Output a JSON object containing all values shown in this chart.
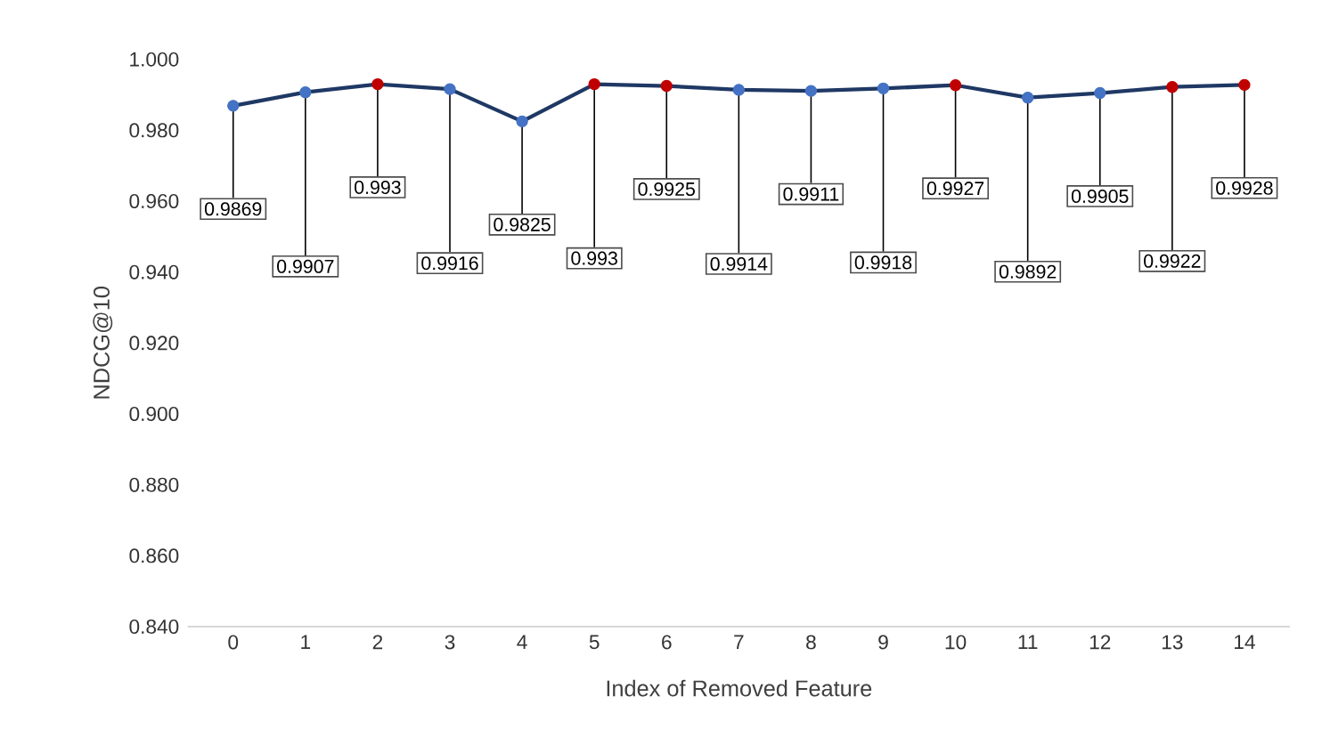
{
  "chart_data": {
    "type": "line",
    "xlabel": "Index of Removed Feature",
    "ylabel": "NDCG@10",
    "categories": [
      "0",
      "1",
      "2",
      "3",
      "4",
      "5",
      "6",
      "7",
      "8",
      "9",
      "10",
      "11",
      "12",
      "13",
      "14"
    ],
    "values": [
      0.9869,
      0.9907,
      0.993,
      0.9916,
      0.9825,
      0.993,
      0.9925,
      0.9914,
      0.9911,
      0.9918,
      0.9927,
      0.9892,
      0.9905,
      0.9922,
      0.9928
    ],
    "color": "#1f3864",
    "colors": [
      "#4472c4",
      "#4472c4",
      "#c00000",
      "#4472c4",
      "#4472c4",
      "#c00000",
      "#c00000",
      "#4472c4",
      "#4472c4",
      "#4472c4",
      "#c00000",
      "#4472c4",
      "#4472c4",
      "#c00000",
      "#c00000"
    ],
    "value_labels": [
      "0.9869",
      "0.9907",
      "0.993",
      "0.9916",
      "0.9825",
      "0.993",
      "0.9925",
      "0.9914",
      "0.9911",
      "0.9918",
      "0.9927",
      "0.9892",
      "0.9905",
      "0.9922",
      "0.9928"
    ],
    "marker": "circle",
    "grid": false,
    "ylim": [
      0.84,
      1.0
    ],
    "yticks": [
      {
        "value": 0.84,
        "label": "0.840"
      },
      {
        "value": 0.86,
        "label": "0.860"
      },
      {
        "value": 0.88,
        "label": "0.880"
      },
      {
        "value": 0.9,
        "label": "0.900"
      },
      {
        "value": 0.92,
        "label": "0.920"
      },
      {
        "value": 0.94,
        "label": "0.940"
      },
      {
        "value": 0.96,
        "label": "0.960"
      },
      {
        "value": 0.98,
        "label": "0.980"
      },
      {
        "value": 1.0,
        "label": "1.000"
      }
    ]
  }
}
